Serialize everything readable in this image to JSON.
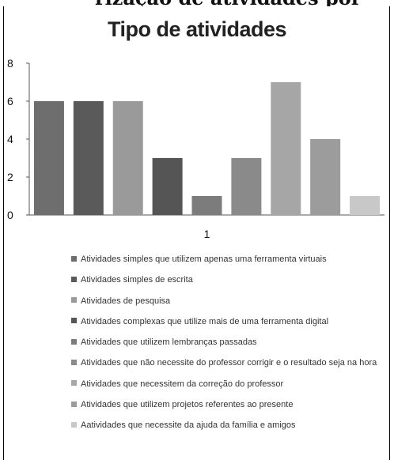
{
  "header_fragment": "rização de atividades por",
  "chart_data": {
    "type": "bar",
    "title": "Tipo de atividades",
    "categories": [
      "1"
    ],
    "ylim": [
      0,
      8
    ],
    "yticks": [
      0,
      2,
      4,
      6,
      8
    ],
    "grid": false,
    "legend_position": "bottom",
    "series": [
      {
        "name": "Atividades simples que utilizem apenas uma ferramenta virtuais",
        "values": [
          6
        ],
        "color": "#6e6e6e"
      },
      {
        "name": "Atividades simples de escrita",
        "values": [
          6
        ],
        "color": "#5a5a5a"
      },
      {
        "name": "Atividades de pesquisa",
        "values": [
          6
        ],
        "color": "#9a9a9a"
      },
      {
        "name": "Atividades complexas que utilize mais de uma ferramenta digital",
        "values": [
          3
        ],
        "color": "#555555"
      },
      {
        "name": "Atividades que utilizem lembranças passadas",
        "values": [
          1
        ],
        "color": "#7c7c7c"
      },
      {
        "name": "Atividades que não necessite do professor corrigir e o resultado seja na hora",
        "values": [
          3
        ],
        "color": "#8a8a8a"
      },
      {
        "name": "Atividades que necessitem da correção do professor",
        "values": [
          7
        ],
        "color": "#a6a6a6"
      },
      {
        "name": "Atividades que utilizem projetos referentes ao presente",
        "values": [
          4
        ],
        "color": "#9c9c9c"
      },
      {
        "name": "Aatividades que necessite da ajuda da família e amigos",
        "values": [
          1
        ],
        "color": "#c8c8c8"
      }
    ]
  }
}
